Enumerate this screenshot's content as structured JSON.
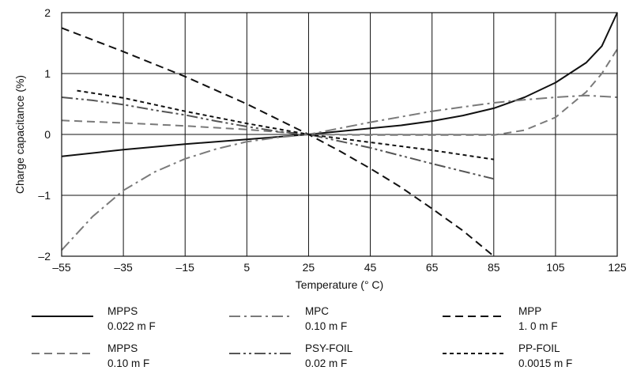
{
  "chart_data": {
    "type": "line",
    "title": "",
    "xlabel": "Temperature (° C)",
    "ylabel": "Charge capacitance (%)",
    "xlim": [
      -55,
      125
    ],
    "ylim": [
      -2,
      2
    ],
    "xticks": [
      -55,
      -35,
      -15,
      5,
      25,
      45,
      65,
      85,
      105,
      125
    ],
    "xtick_labels": [
      "–55",
      "–35",
      "–15",
      "5",
      "25",
      "45",
      "65",
      "85",
      "105",
      "125"
    ],
    "yticks": [
      2,
      1,
      0,
      -1,
      -2
    ],
    "ytick_labels": [
      "2",
      "1",
      "0",
      "–1",
      "–2"
    ],
    "grid": true,
    "legend_position": "bottom",
    "series": [
      {
        "name": "MPPS",
        "name2": "0.022 m F",
        "color": "#111111",
        "dash": "solid",
        "points": [
          [
            -55,
            -0.36
          ],
          [
            -35,
            -0.25
          ],
          [
            -15,
            -0.16
          ],
          [
            5,
            -0.08
          ],
          [
            25,
            0.0
          ],
          [
            45,
            0.1
          ],
          [
            55,
            0.15
          ],
          [
            65,
            0.22
          ],
          [
            75,
            0.31
          ],
          [
            85,
            0.43
          ],
          [
            95,
            0.61
          ],
          [
            105,
            0.85
          ],
          [
            115,
            1.18
          ],
          [
            120,
            1.45
          ],
          [
            125,
            2.0
          ]
        ]
      },
      {
        "name": "MPC",
        "name2": "0.10 m F",
        "color": "#7a7a7a",
        "dash": "dashdot",
        "points": [
          [
            -55,
            -1.9
          ],
          [
            -45,
            -1.35
          ],
          [
            -35,
            -0.92
          ],
          [
            -25,
            -0.62
          ],
          [
            -15,
            -0.4
          ],
          [
            -5,
            -0.24
          ],
          [
            5,
            -0.12
          ],
          [
            15,
            -0.05
          ],
          [
            25,
            0.0
          ],
          [
            35,
            0.1
          ],
          [
            45,
            0.2
          ],
          [
            55,
            0.29
          ],
          [
            65,
            0.38
          ],
          [
            75,
            0.45
          ],
          [
            85,
            0.52
          ],
          [
            95,
            0.57
          ],
          [
            105,
            0.61
          ],
          [
            115,
            0.64
          ],
          [
            125,
            0.61
          ]
        ]
      },
      {
        "name": "MPP",
        "name2": "1. 0 m F",
        "color": "#111111",
        "dash": "dashed",
        "points": [
          [
            -55,
            1.75
          ],
          [
            -35,
            1.36
          ],
          [
            -15,
            0.95
          ],
          [
            5,
            0.5
          ],
          [
            25,
            0.0
          ],
          [
            35,
            -0.27
          ],
          [
            45,
            -0.56
          ],
          [
            55,
            -0.87
          ],
          [
            65,
            -1.22
          ],
          [
            75,
            -1.58
          ],
          [
            85,
            -2.0
          ]
        ]
      },
      {
        "name": "MPPS",
        "name2": "0.10 m F",
        "color": "#7a7a7a",
        "dash": "dashed",
        "points": [
          [
            -55,
            0.23
          ],
          [
            -35,
            0.19
          ],
          [
            -15,
            0.14
          ],
          [
            5,
            0.08
          ],
          [
            25,
            0.0
          ],
          [
            45,
            -0.01
          ],
          [
            65,
            -0.01
          ],
          [
            85,
            -0.01
          ],
          [
            95,
            0.07
          ],
          [
            105,
            0.28
          ],
          [
            115,
            0.7
          ],
          [
            120,
            1.0
          ],
          [
            125,
            1.4
          ]
        ]
      },
      {
        "name": "PSY-FOIL",
        "name2": "0.02 m F",
        "color": "#555555",
        "dash": "dashdotdot",
        "points": [
          [
            -55,
            0.61
          ],
          [
            -45,
            0.56
          ],
          [
            -35,
            0.49
          ],
          [
            -25,
            0.4
          ],
          [
            -15,
            0.32
          ],
          [
            -5,
            0.22
          ],
          [
            5,
            0.13
          ],
          [
            15,
            0.05
          ],
          [
            25,
            0.0
          ],
          [
            45,
            -0.22
          ],
          [
            65,
            -0.48
          ],
          [
            85,
            -0.73
          ]
        ]
      },
      {
        "name": "PP-FOIL",
        "name2": "0.0015 m F",
        "color": "#111111",
        "dash": "shortdash",
        "points": [
          [
            -50,
            0.72
          ],
          [
            -35,
            0.6
          ],
          [
            -15,
            0.38
          ],
          [
            5,
            0.18
          ],
          [
            25,
            0.0
          ],
          [
            45,
            -0.13
          ],
          [
            65,
            -0.26
          ],
          [
            85,
            -0.41
          ]
        ]
      }
    ]
  }
}
